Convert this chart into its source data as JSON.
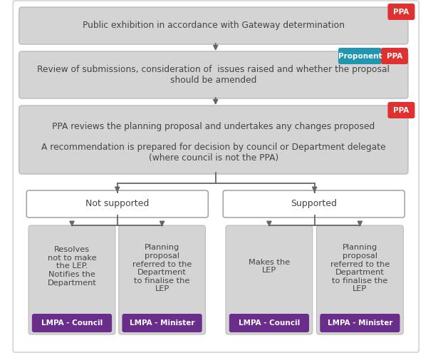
{
  "background_color": "#ffffff",
  "outer_border_color": "#cccccc",
  "box_fill_gray": "#d4d4d4",
  "box_fill_white": "#ffffff",
  "box_stroke_gray": "#bbbbbb",
  "box_stroke_white": "#999999",
  "arrow_color": "#666666",
  "text_color_dark": "#444444",
  "badge_ppa_bg": "#e03030",
  "badge_ppa_text": "#ffffff",
  "badge_proponent_bg": "#2196b0",
  "badge_proponent_text": "#ffffff",
  "lmpa_bg": "#6B2D8B",
  "lmpa_text_color": "#ffffff",
  "box1_text": "Public exhibition in accordance with Gateway determination",
  "box2_text": "Review of submissions, consideration of  issues raised and whether the proposal\nshould be amended",
  "box3_line1": "PPA reviews the planning proposal and undertakes any changes proposed",
  "box3_line2": "A recommendation is prepared for decision by council or Department delegate\n(where council is not the PPA)",
  "not_supported_text": "Not supported",
  "supported_text": "Supported",
  "leaf1_text": "Resolves\nnot to make\nthe LEP.\nNotifies the\nDepartment",
  "leaf2_text": "Planning\nproposal\nreferred to the\nDepartment\nto finalise the\nLEP",
  "leaf3_text": "Makes the\nLEP",
  "leaf4_text": "Planning\nproposal\nreferred to the\nDepartment\nto finalise the\nLEP",
  "leaf1_badge": "LMPA - Council",
  "leaf2_badge": "LMPA - Minister",
  "leaf3_badge": "LMPA - Council",
  "leaf4_badge": "LMPA - Minister"
}
